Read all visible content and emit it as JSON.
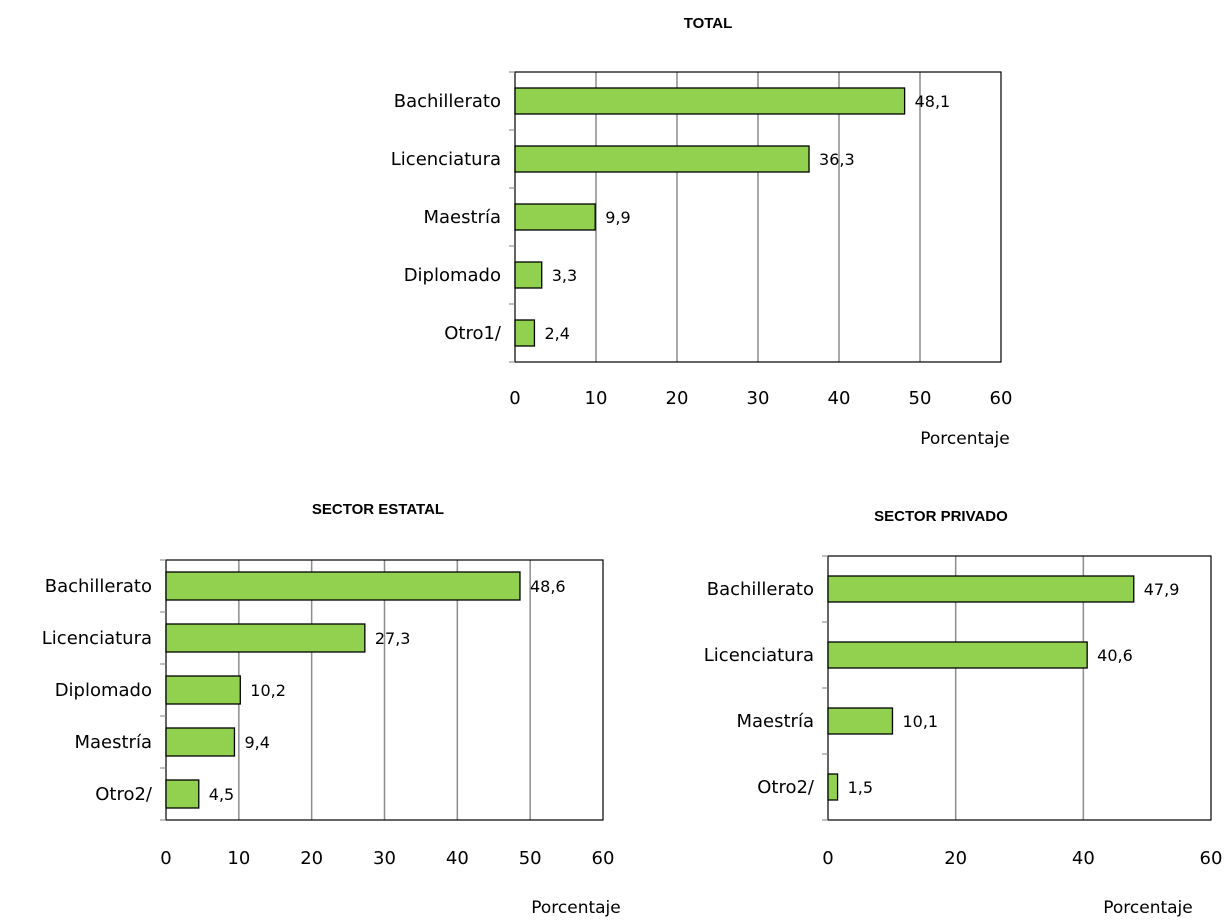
{
  "bar_color": "#92d050",
  "bar_stroke": "#000000",
  "grid_color": "#8c8c8c",
  "chart_data": [
    {
      "type": "bar",
      "orientation": "horizontal",
      "title": "TOTAL",
      "xlabel": "Porcentaje",
      "categories": [
        "Bachillerato",
        "Licenciatura",
        "Maestría",
        "Diplomado",
        "Otro1/"
      ],
      "values": [
        48.1,
        36.3,
        9.9,
        3.3,
        2.4
      ],
      "value_labels": [
        "48,1",
        "36,3",
        "9,9",
        "3,3",
        "2,4"
      ],
      "xlim": [
        0,
        60
      ],
      "ticks": [
        0,
        10,
        20,
        30,
        40,
        50,
        60
      ],
      "grid": true
    },
    {
      "type": "bar",
      "orientation": "horizontal",
      "title": "SECTOR ESTATAL",
      "xlabel": "Porcentaje",
      "categories": [
        "Bachillerato",
        "Licenciatura",
        "Diplomado",
        "Maestría",
        "Otro2/"
      ],
      "values": [
        48.6,
        27.3,
        10.2,
        9.4,
        4.5
      ],
      "value_labels": [
        "48,6",
        "27,3",
        "10,2",
        "9,4",
        "4,5"
      ],
      "xlim": [
        0,
        60
      ],
      "ticks": [
        0,
        10,
        20,
        30,
        40,
        50,
        60
      ],
      "grid": true
    },
    {
      "type": "bar",
      "orientation": "horizontal",
      "title": "SECTOR PRIVADO",
      "xlabel": "Porcentaje",
      "categories": [
        "Bachillerato",
        "Licenciatura",
        "Maestría",
        "Otro2/"
      ],
      "values": [
        47.9,
        40.6,
        10.1,
        1.5
      ],
      "value_labels": [
        "47,9",
        "40,6",
        "10,1",
        "1,5"
      ],
      "xlim": [
        0,
        60
      ],
      "ticks": [
        0,
        20,
        40,
        60
      ],
      "grid": true
    }
  ]
}
